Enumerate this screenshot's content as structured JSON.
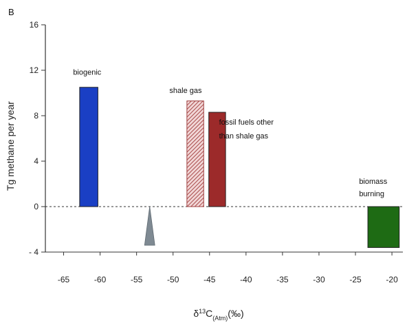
{
  "panel_label": "B",
  "chart_data": {
    "type": "bar",
    "ylabel": "Tg methane per year",
    "xlabel_main": "δ",
    "xlabel_sup": "13",
    "xlabel_rest": "C",
    "xlabel_sub": "(Atm)",
    "xlabel_unit": "(‰)",
    "xlim": [
      -67.5,
      -18.5
    ],
    "ylim": [
      -4,
      16
    ],
    "x_ticks": [
      -65,
      -60,
      -55,
      -50,
      -45,
      -40,
      -35,
      -30,
      -25,
      -20
    ],
    "x_tick_labels": [
      "-65",
      "-60",
      "-55",
      "-50",
      "-45",
      "-40",
      "-35",
      "-30",
      "-25",
      "-20"
    ],
    "y_ticks": [
      -4,
      0,
      4,
      8,
      12,
      16
    ],
    "y_tick_labels": [
      "- 4",
      "0",
      "4",
      "8",
      "12",
      "16"
    ],
    "zero_line": "dashed",
    "bars": [
      {
        "x0": -62.8,
        "x1": -60.3,
        "value": 10.5,
        "color": "#1a3fc4",
        "pattern": "solid"
      },
      {
        "x0": -48.1,
        "x1": -45.8,
        "value": 9.3,
        "color": "#c97f7f",
        "pattern": "hatched"
      },
      {
        "x0": -45.1,
        "x1": -42.8,
        "value": 8.3,
        "color": "#9c2a2a",
        "pattern": "solid"
      },
      {
        "x0": -23.3,
        "x1": -19.0,
        "value": -3.6,
        "color": "#1e6b14",
        "pattern": "solid"
      }
    ],
    "markers": [
      {
        "type": "triangle",
        "x": -53.2,
        "half_width": 0.7,
        "y_top": 0,
        "y_bottom": -3.4,
        "color": "#7f8a93"
      }
    ],
    "annotations": [
      {
        "text": "biogenic",
        "x": -63.7,
        "y": 11.6
      },
      {
        "text": "shale gas",
        "x": -50.5,
        "y": 10.0
      },
      {
        "text": "fossil fuels other",
        "x": -43.7,
        "y": 7.2
      },
      {
        "text": "than shale gas",
        "x": -43.7,
        "y": 6.0
      },
      {
        "text": "biomass",
        "x": -24.5,
        "y": 2.0
      },
      {
        "text": "burning",
        "x": -24.5,
        "y": 0.9
      }
    ]
  }
}
